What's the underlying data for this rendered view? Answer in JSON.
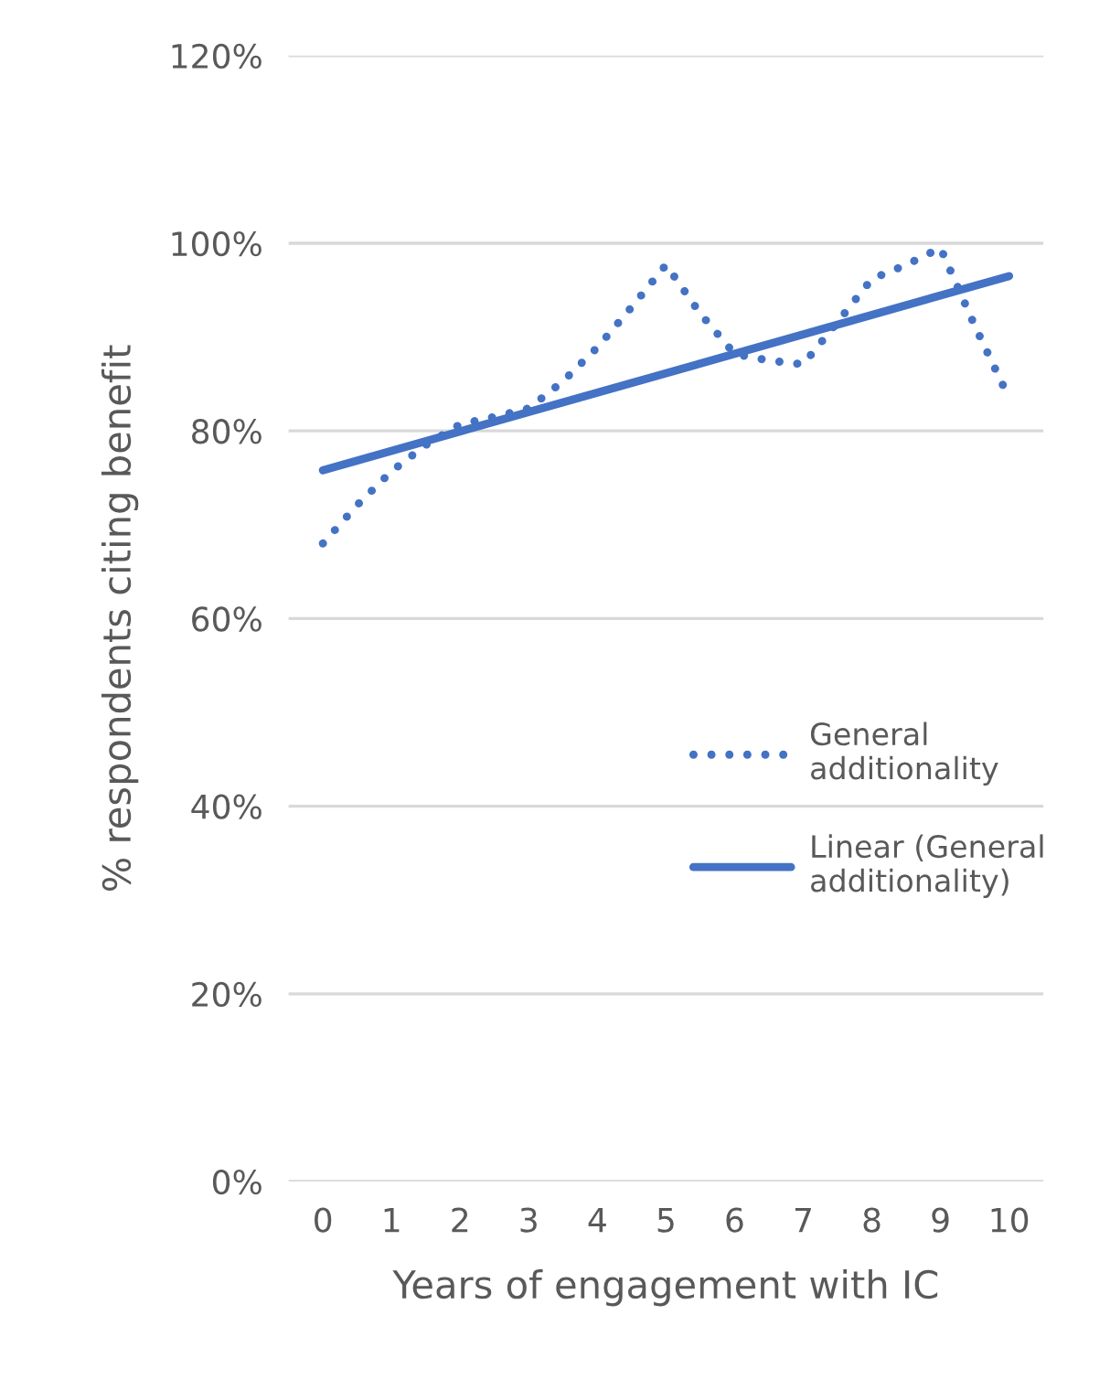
{
  "chart_data": {
    "type": "line",
    "xlabel": "Years of engagement with IC",
    "ylabel": "% respondents citing benefit",
    "series": [
      {
        "name": "General additionality",
        "color": "#4472c4",
        "line_style": "dotted",
        "x": [
          0,
          0.5,
          1,
          1.5,
          2,
          2.5,
          3,
          3.5,
          4,
          4.5,
          5,
          5.5,
          6,
          6.5,
          7,
          7.5,
          8,
          8.5,
          9,
          9.5,
          10
        ],
        "values": [
          68.0,
          72.1,
          75.7,
          78.5,
          80.7,
          81.5,
          82.4,
          85.3,
          88.9,
          93.2,
          97.7,
          92.5,
          88.2,
          87.5,
          87.1,
          91.6,
          96.2,
          97.7,
          99.5,
          91.2,
          83.5
        ]
      },
      {
        "name": "Linear (General additionality)",
        "color": "#4472c4",
        "line_style": "solid",
        "x": [
          0,
          10
        ],
        "values": [
          75.8,
          96.5
        ]
      }
    ],
    "xlim": [
      -0.5,
      10.5
    ],
    "xticks": [
      0,
      1,
      2,
      3,
      4,
      5,
      6,
      7,
      8,
      9,
      10
    ],
    "ylim": [
      0,
      120
    ],
    "yticks": [
      {
        "value": 0,
        "label": "0%"
      },
      {
        "value": 20,
        "label": "20%"
      },
      {
        "value": 40,
        "label": "40%"
      },
      {
        "value": 60,
        "label": "60%"
      },
      {
        "value": 80,
        "label": "80%"
      },
      {
        "value": 100,
        "label": "100%"
      },
      {
        "value": 120,
        "label": "120%"
      }
    ],
    "grid": "y",
    "legend": "right",
    "marker": "none"
  }
}
